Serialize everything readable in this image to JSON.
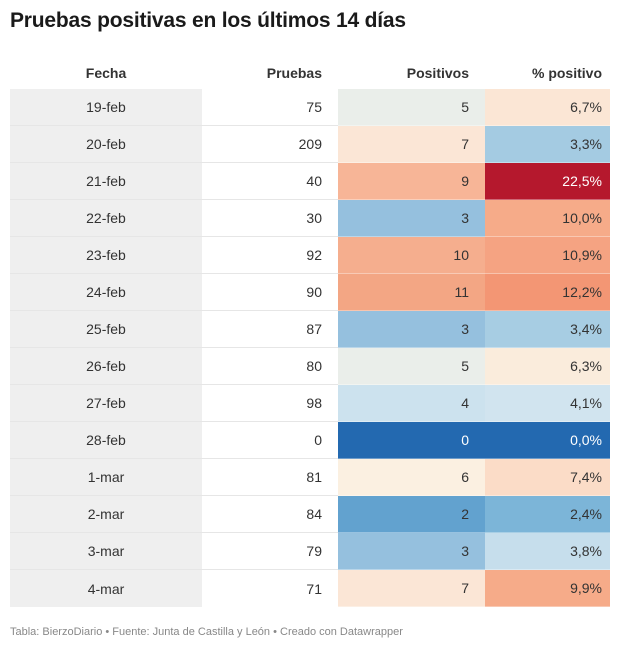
{
  "title": "Pruebas positivas en los últimos 14 días",
  "footer": "Tabla: BierzoDiario • Fuente: Junta de Castilla y León • Creado con Datawrapper",
  "chart_data": {
    "type": "table",
    "columns": [
      "Fecha",
      "Pruebas",
      "Positivos",
      "% positivo"
    ],
    "rows": [
      {
        "fecha": "19-feb",
        "pruebas": "75",
        "positivos": "5",
        "pct": "6,7%",
        "pos_color": "#eaeeea",
        "pct_color": "#fbe6d5"
      },
      {
        "fecha": "20-feb",
        "pruebas": "209",
        "positivos": "7",
        "pct": "3,3%",
        "pos_color": "#fbe6d6",
        "pct_color": "#a4cbe2"
      },
      {
        "fecha": "21-feb",
        "pruebas": "40",
        "positivos": "9",
        "pct": "22,5%",
        "pos_color": "#f7b597",
        "pct_color": "#b5182d"
      },
      {
        "fecha": "22-feb",
        "pruebas": "30",
        "positivos": "3",
        "pct": "10,0%",
        "pos_color": "#95c0de",
        "pct_color": "#f6ab89"
      },
      {
        "fecha": "23-feb",
        "pruebas": "92",
        "positivos": "10",
        "pct": "10,9%",
        "pos_color": "#f5ae8e",
        "pct_color": "#f5a382"
      },
      {
        "fecha": "24-feb",
        "pruebas": "90",
        "positivos": "11",
        "pct": "12,2%",
        "pos_color": "#f3a684",
        "pct_color": "#f39674"
      },
      {
        "fecha": "25-feb",
        "pruebas": "87",
        "positivos": "3",
        "pct": "3,4%",
        "pos_color": "#95c0de",
        "pct_color": "#a7cde3"
      },
      {
        "fecha": "26-feb",
        "pruebas": "80",
        "positivos": "5",
        "pct": "6,3%",
        "pos_color": "#eaeeea",
        "pct_color": "#faecdc"
      },
      {
        "fecha": "27-feb",
        "pruebas": "98",
        "positivos": "4",
        "pct": "4,1%",
        "pos_color": "#cce2ee",
        "pct_color": "#d1e4ef"
      },
      {
        "fecha": "28-feb",
        "pruebas": "0",
        "positivos": "0",
        "pct": "0,0%",
        "pos_color": "#2369b0",
        "pct_color": "#2369b0"
      },
      {
        "fecha": "1-mar",
        "pruebas": "81",
        "positivos": "6",
        "pct": "7,4%",
        "pos_color": "#fbf0e1",
        "pct_color": "#fbdcc7"
      },
      {
        "fecha": "2-mar",
        "pruebas": "84",
        "positivos": "2",
        "pct": "2,4%",
        "pos_color": "#62a2cf",
        "pct_color": "#7cb5d8"
      },
      {
        "fecha": "3-mar",
        "pruebas": "79",
        "positivos": "3",
        "pct": "3,8%",
        "pos_color": "#95c0de",
        "pct_color": "#c6deec"
      },
      {
        "fecha": "4-mar",
        "pruebas": "71",
        "positivos": "7",
        "pct": "9,9%",
        "pos_color": "#fbe6d6",
        "pct_color": "#f6ab89"
      }
    ]
  }
}
